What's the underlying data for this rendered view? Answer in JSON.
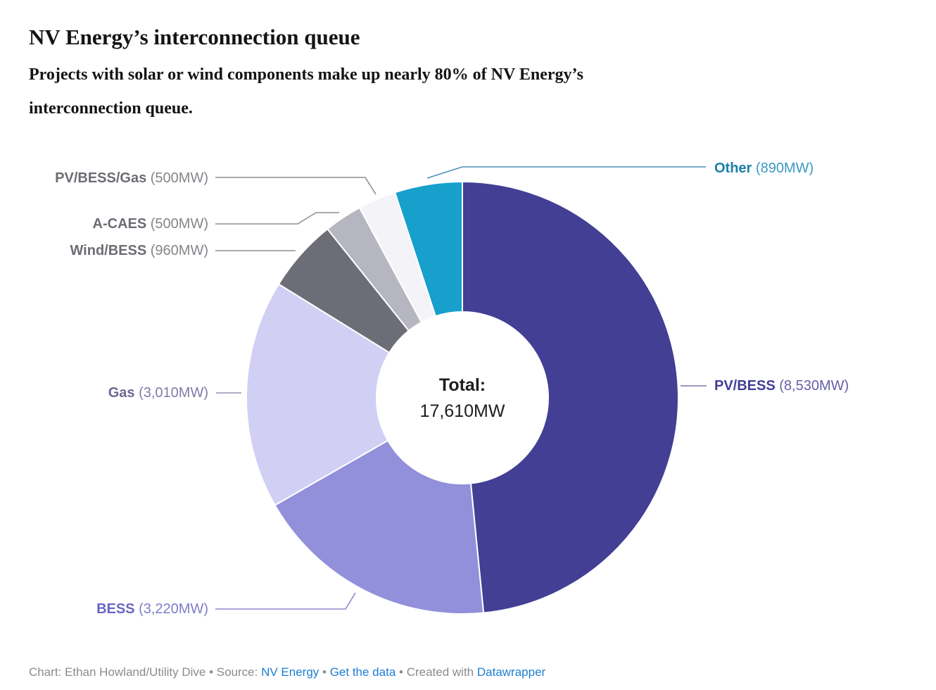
{
  "header": {
    "title": "NV Energy’s interconnection queue",
    "subtitle_lines": [
      "Projects with solar or wind components make up nearly 80% of NV Energy’s",
      "interconnection queue."
    ]
  },
  "chart_data": {
    "type": "pie",
    "donut": true,
    "title": "NV Energy’s interconnection queue",
    "subtitle": "Projects with solar or wind components make up nearly 80% of NV Energy’s interconnection queue.",
    "unit": "MW",
    "total_mw": 17610,
    "center_label": "Total:",
    "center_value": "17,610MW",
    "start_angle_deg": 0,
    "direction": "clockwise",
    "slices": [
      {
        "label": "PV/BESS",
        "value_mw": 8530,
        "value_text": "(8,530MW)",
        "color": "#423f94",
        "label_color": "#433e96",
        "value_color": "#6660a8"
      },
      {
        "label": "BESS",
        "value_mw": 3220,
        "value_text": "(3,220MW)",
        "color": "#9290da",
        "label_color": "#6a66c0",
        "value_color": "#807cca"
      },
      {
        "label": "Gas",
        "value_mw": 3010,
        "value_text": "(3,010MW)",
        "color": "#d1cff4",
        "label_color": "#6b6894",
        "value_color": "#7f7ca8"
      },
      {
        "label": "Wind/BESS",
        "value_mw": 960,
        "value_text": "(960MW)",
        "color": "#6d6d77",
        "label_color": "#6c6c74",
        "value_color": "#85858b"
      },
      {
        "label": "A-CAES",
        "value_mw": 500,
        "value_text": "(500MW)",
        "color": "#b6b6c0",
        "label_color": "#6c6c74",
        "value_color": "#85858b"
      },
      {
        "label": "PV/BESS/Gas",
        "value_mw": 500,
        "value_text": "(500MW)",
        "color": "#f3f3f8",
        "label_color": "#6c6c74",
        "value_color": "#85858b"
      },
      {
        "label": "Other",
        "value_mw": 890,
        "value_text": "(890MW)",
        "color": "#17a0cb",
        "label_color": "#1b7fa9",
        "value_color": "#3b99c4"
      }
    ]
  },
  "footer": {
    "chart_credit": "Chart: Ethan Howland/Utility Dive",
    "bullet": "•",
    "source_label": "Source:",
    "source_link": "NV Energy",
    "data_link": "Get the data",
    "created_with": "Created with",
    "creator_link": "Datawrapper"
  }
}
